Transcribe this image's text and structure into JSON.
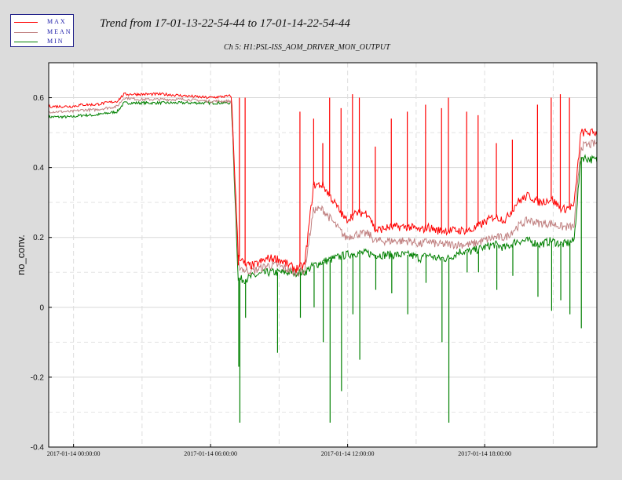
{
  "header": {
    "title": "Trend from 17-01-13-22-54-44 to 17-01-14-22-54-44",
    "subtitle": "Ch 5: H1:PSL-ISS_AOM_DRIVER_MON_OUTPUT"
  },
  "legend": [
    {
      "label": "MAX",
      "color": "#ff0000"
    },
    {
      "label": "MEAN",
      "color": "#c08080"
    },
    {
      "label": "MIN",
      "color": "#008000"
    }
  ],
  "chart_data": {
    "type": "line",
    "title": "Trend from 17-01-13-22-54-44 to 17-01-14-22-54-44",
    "subtitle": "Ch 5: H1:PSL-ISS_AOM_DRIVER_MON_OUTPUT",
    "ylabel": "no_conv.",
    "xlabel": "",
    "x_unit": "hours since 2017-01-13 22:54:44",
    "xlim": [
      0,
      24
    ],
    "ylim": [
      -0.4,
      0.7
    ],
    "y_ticks": [
      -0.4,
      -0.2,
      0,
      0.2,
      0.4,
      0.6
    ],
    "y_tick_labels": [
      "-0.4",
      "-0.2",
      "0",
      "0.2",
      "0.4",
      "0.6"
    ],
    "x_ticks": [
      1.0878,
      7.0878,
      13.0878,
      19.0878
    ],
    "x_tick_labels": [
      "2017-01-14 00:00:00",
      "2017-01-14 06:00:00",
      "2017-01-14 12:00:00",
      "2017-01-14 18:00:00"
    ],
    "grid": true,
    "legend_position": "top-left",
    "series": [
      {
        "name": "MAX",
        "color": "#ff0000",
        "x": [
          0,
          1.0,
          1.5,
          2.0,
          2.5,
          3.0,
          3.3,
          4.0,
          5.0,
          6.0,
          7.0,
          8.0,
          8.3,
          8.6,
          9.0,
          9.6,
          10.0,
          10.8,
          11.2,
          11.6,
          12.0,
          13.0,
          13.5,
          14.0,
          14.3,
          15.0,
          15.8,
          16.3,
          16.6,
          17.0,
          17.5,
          18.0,
          18.5,
          19.0,
          19.5,
          20.0,
          20.5,
          21.0,
          21.5,
          22.0,
          22.5,
          23.0,
          23.3,
          24.0
        ],
        "y": [
          0.575,
          0.575,
          0.58,
          0.58,
          0.585,
          0.59,
          0.61,
          0.61,
          0.61,
          0.605,
          0.6,
          0.605,
          0.15,
          0.12,
          0.12,
          0.14,
          0.14,
          0.11,
          0.12,
          0.35,
          0.35,
          0.25,
          0.27,
          0.27,
          0.22,
          0.23,
          0.23,
          0.22,
          0.23,
          0.22,
          0.22,
          0.22,
          0.22,
          0.24,
          0.26,
          0.25,
          0.3,
          0.32,
          0.3,
          0.31,
          0.28,
          0.29,
          0.5,
          0.5
        ]
      },
      {
        "name": "MEAN",
        "color": "#c08080",
        "x": [
          0,
          1.0,
          1.5,
          2.0,
          2.5,
          3.0,
          3.3,
          4.0,
          5.0,
          6.0,
          7.0,
          8.0,
          8.3,
          8.6,
          9.0,
          9.6,
          10.0,
          10.8,
          11.2,
          11.6,
          12.0,
          13.0,
          13.5,
          14.0,
          14.3,
          15.0,
          15.8,
          16.3,
          16.6,
          17.0,
          17.5,
          18.0,
          18.5,
          19.0,
          19.5,
          20.0,
          20.5,
          21.0,
          21.5,
          22.0,
          22.5,
          23.0,
          23.3,
          24.0
        ],
        "y": [
          0.56,
          0.56,
          0.565,
          0.565,
          0.57,
          0.575,
          0.6,
          0.595,
          0.595,
          0.595,
          0.59,
          0.59,
          0.12,
          0.105,
          0.105,
          0.12,
          0.12,
          0.1,
          0.105,
          0.28,
          0.28,
          0.2,
          0.21,
          0.21,
          0.19,
          0.19,
          0.19,
          0.18,
          0.19,
          0.18,
          0.18,
          0.18,
          0.18,
          0.19,
          0.2,
          0.2,
          0.23,
          0.25,
          0.24,
          0.24,
          0.23,
          0.23,
          0.46,
          0.47
        ]
      },
      {
        "name": "MIN",
        "color": "#008000",
        "x": [
          0,
          1.0,
          1.5,
          2.0,
          2.5,
          3.0,
          3.3,
          4.0,
          5.0,
          6.0,
          7.0,
          8.0,
          8.3,
          8.6,
          9.0,
          9.6,
          10.0,
          10.8,
          11.2,
          11.6,
          12.0,
          13.0,
          13.5,
          14.0,
          14.3,
          15.0,
          15.8,
          16.3,
          16.6,
          17.0,
          17.5,
          18.0,
          18.5,
          19.0,
          19.5,
          20.0,
          20.5,
          21.0,
          21.5,
          22.0,
          22.5,
          23.0,
          23.3,
          24.0
        ],
        "y": [
          0.545,
          0.545,
          0.55,
          0.55,
          0.555,
          0.56,
          0.585,
          0.585,
          0.585,
          0.585,
          0.585,
          0.585,
          0.08,
          0.08,
          0.09,
          0.1,
          0.1,
          0.1,
          0.1,
          0.12,
          0.13,
          0.15,
          0.155,
          0.155,
          0.15,
          0.15,
          0.15,
          0.14,
          0.15,
          0.14,
          0.14,
          0.16,
          0.16,
          0.17,
          0.18,
          0.17,
          0.19,
          0.19,
          0.18,
          0.19,
          0.18,
          0.19,
          0.43,
          0.42
        ]
      }
    ],
    "spikes": [
      {
        "x": 8.3,
        "min": -0.17,
        "max": 0.12
      },
      {
        "x": 8.35,
        "min": -0.33,
        "max": 0.6
      },
      {
        "x": 8.6,
        "min": -0.03,
        "max": 0.6
      },
      {
        "x": 10.0,
        "min": -0.13,
        "max": 0.14
      },
      {
        "x": 11.0,
        "min": -0.03,
        "max": 0.56
      },
      {
        "x": 11.6,
        "min": 0.0,
        "max": 0.54
      },
      {
        "x": 12.0,
        "min": -0.1,
        "max": 0.47
      },
      {
        "x": 12.3,
        "min": -0.33,
        "max": 0.6
      },
      {
        "x": 12.8,
        "min": -0.24,
        "max": 0.57
      },
      {
        "x": 13.3,
        "min": -0.02,
        "max": 0.61
      },
      {
        "x": 13.6,
        "min": -0.15,
        "max": 0.6
      },
      {
        "x": 14.3,
        "min": 0.05,
        "max": 0.46
      },
      {
        "x": 15.0,
        "min": 0.04,
        "max": 0.54
      },
      {
        "x": 15.7,
        "min": -0.02,
        "max": 0.56
      },
      {
        "x": 16.5,
        "min": 0.07,
        "max": 0.58
      },
      {
        "x": 17.2,
        "min": -0.1,
        "max": 0.57
      },
      {
        "x": 17.5,
        "min": -0.33,
        "max": 0.6
      },
      {
        "x": 18.3,
        "min": 0.1,
        "max": 0.56
      },
      {
        "x": 18.8,
        "min": 0.1,
        "max": 0.55
      },
      {
        "x": 19.6,
        "min": 0.05,
        "max": 0.47
      },
      {
        "x": 20.3,
        "min": 0.09,
        "max": 0.48
      },
      {
        "x": 21.4,
        "min": 0.03,
        "max": 0.58
      },
      {
        "x": 22.0,
        "min": -0.01,
        "max": 0.6
      },
      {
        "x": 22.4,
        "min": 0.02,
        "max": 0.61
      },
      {
        "x": 22.8,
        "min": -0.02,
        "max": 0.6
      },
      {
        "x": 23.3,
        "min": -0.06,
        "max": 0.5
      }
    ]
  }
}
